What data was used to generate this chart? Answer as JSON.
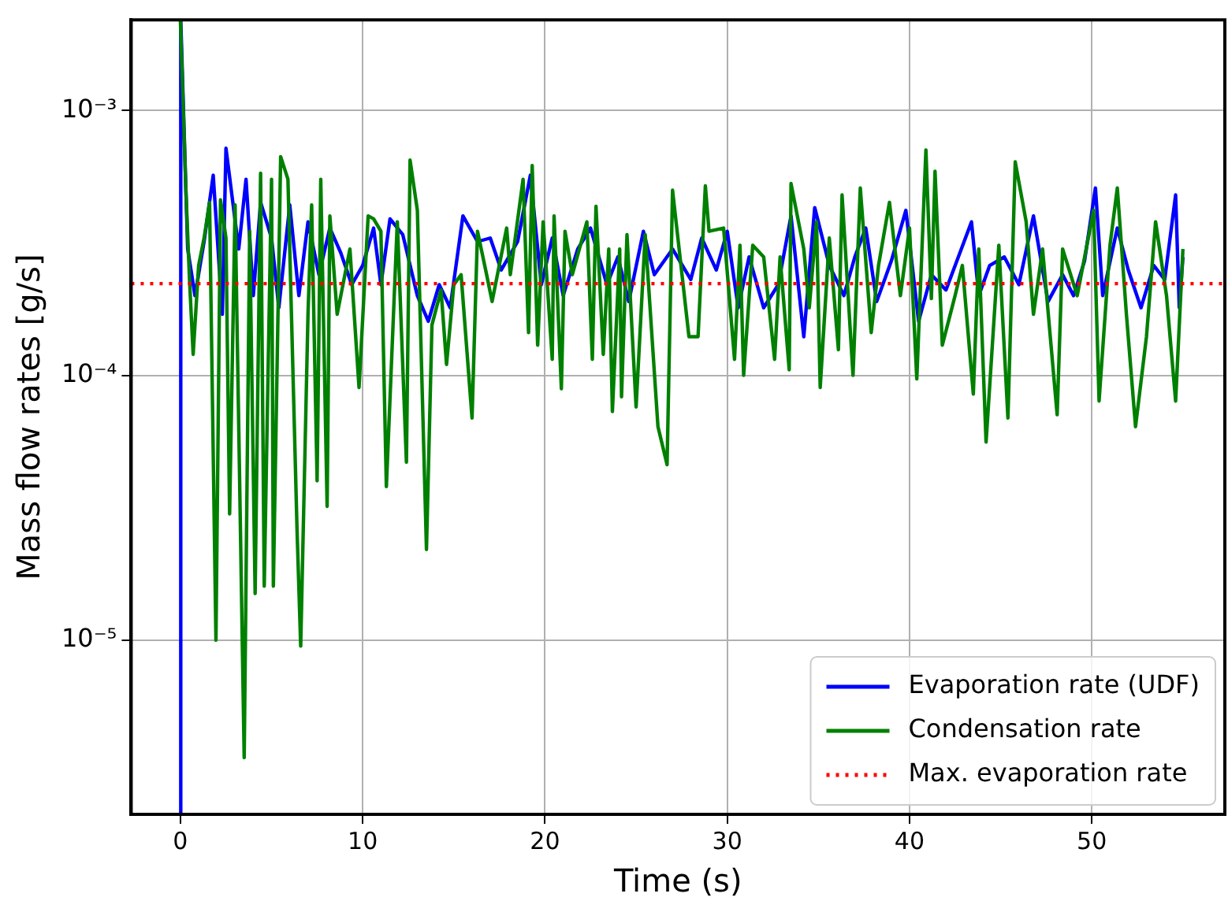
{
  "chart_data": {
    "type": "line",
    "xlabel": "Time (s)",
    "ylabel": "Mass flow rates [g/s]",
    "log": "y",
    "grid": true,
    "legend": "bottom right",
    "marker": "none",
    "line_style": "solid",
    "xlim": [
      -2.7,
      57.3
    ],
    "xticks": [
      0,
      10,
      20,
      30,
      40,
      50
    ],
    "ylim": [
      2.2e-06,
      0.0022
    ],
    "yticks": [
      {
        "value": 1e-05,
        "label": "10⁻⁵"
      },
      {
        "value": 0.0001,
        "label": "10⁻⁴"
      },
      {
        "value": 0.001,
        "label": "10⁻³"
      }
    ],
    "ref_lines": [
      {
        "axis": "y",
        "value": 0.000222,
        "label": "Max. evaporation rate",
        "color": "#ff0000",
        "line_style": "dotted"
      }
    ],
    "series": [
      {
        "name": "Evaporation rate (UDF)",
        "color": "#0000ff",
        "x": [
          0,
          0.02,
          0.4,
          0.8,
          1.3,
          1.8,
          2.3,
          2.5,
          3.2,
          3.6,
          4.0,
          4.4,
          5.0,
          5.4,
          6.0,
          6.5,
          7.0,
          7.6,
          8.2,
          8.8,
          9.4,
          10.0,
          10.6,
          11.0,
          11.5,
          12.2,
          13.0,
          13.6,
          14.2,
          14.8,
          15.5,
          16.3,
          17.0,
          17.6,
          18.5,
          19.2,
          19.8,
          20.4,
          21.0,
          21.8,
          22.5,
          23.4,
          24.0,
          24.6,
          25.4,
          26.0,
          27.0,
          28.0,
          28.6,
          29.4,
          30.0,
          30.6,
          31.2,
          32.0,
          32.8,
          33.5,
          34.2,
          34.8,
          35.6,
          36.4,
          37.0,
          37.6,
          38.2,
          39.0,
          39.8,
          40.5,
          41.2,
          42.0,
          43.4,
          43.8,
          44.4,
          45.2,
          46.0,
          46.8,
          47.6,
          48.4,
          49.0,
          49.6,
          50.2,
          50.6,
          51.4,
          52.0,
          52.7,
          53.4,
          54.0,
          54.6,
          54.8,
          55.0
        ],
        "values": [
          2.2e-06,
          0.0022,
          0.0003,
          0.0002,
          0.00032,
          0.00057,
          0.00017,
          0.00072,
          0.0003,
          0.00055,
          0.0002,
          0.00045,
          0.00033,
          0.00018,
          0.00044,
          0.0002,
          0.00038,
          0.00024,
          0.00036,
          0.00029,
          0.00022,
          0.00026,
          0.00036,
          0.00022,
          0.00039,
          0.00034,
          0.0002,
          0.00016,
          0.00022,
          0.00018,
          0.0004,
          0.00032,
          0.00033,
          0.00025,
          0.00032,
          0.00057,
          0.00022,
          0.00033,
          0.0002,
          0.0003,
          0.00036,
          0.00022,
          0.00028,
          0.00019,
          0.00035,
          0.00024,
          0.0003,
          0.00023,
          0.00033,
          0.00025,
          0.00035,
          0.00018,
          0.00028,
          0.00018,
          0.00022,
          0.0004,
          0.00014,
          0.00043,
          0.00026,
          0.0002,
          0.00028,
          0.00036,
          0.00019,
          0.00027,
          0.00042,
          0.00016,
          0.00024,
          0.00021,
          0.00038,
          0.0002,
          0.00026,
          0.00028,
          0.00022,
          0.0004,
          0.00019,
          0.00024,
          0.0002,
          0.00027,
          0.00051,
          0.0002,
          0.00036,
          0.00025,
          0.00018,
          0.00026,
          0.00023,
          0.00048,
          0.00018,
          0.00028
        ]
      },
      {
        "name": "Condensation rate",
        "color": "#008000",
        "x": [
          0,
          0.3,
          0.5,
          0.7,
          1.0,
          1.3,
          1.6,
          1.95,
          2.2,
          2.5,
          2.7,
          3.0,
          3.5,
          3.8,
          4.1,
          4.4,
          4.6,
          5.0,
          5.1,
          5.5,
          5.9,
          6.4,
          6.6,
          7.0,
          7.2,
          7.5,
          7.7,
          8.05,
          8.2,
          8.6,
          9.3,
          9.8,
          10.3,
          10.6,
          11.0,
          11.3,
          11.9,
          12.4,
          12.6,
          13.0,
          13.5,
          13.8,
          14.3,
          14.6,
          15.0,
          15.4,
          16.0,
          16.3,
          16.8,
          17.1,
          17.9,
          18.1,
          18.8,
          19.1,
          19.3,
          19.6,
          19.9,
          20.4,
          20.5,
          20.9,
          21.1,
          21.5,
          22.3,
          22.6,
          22.8,
          23.2,
          23.5,
          23.7,
          24.1,
          24.2,
          24.5,
          25.0,
          25.5,
          26.2,
          26.7,
          27.0,
          27.9,
          28.4,
          28.8,
          29.0,
          29.8,
          30.4,
          30.7,
          30.9,
          31.4,
          32.0,
          32.6,
          32.9,
          33.4,
          33.5,
          34.2,
          34.5,
          34.9,
          35.1,
          35.6,
          36.1,
          36.3,
          36.9,
          37.3,
          37.9,
          38.3,
          38.9,
          39.5,
          40.0,
          40.4,
          40.9,
          41.2,
          41.4,
          41.8,
          42.5,
          42.9,
          43.5,
          43.8,
          44.2,
          44.9,
          45.4,
          45.8,
          46.4,
          46.8,
          47.3,
          48.1,
          48.4,
          49.2,
          50.1,
          50.4,
          51.0,
          51.4,
          51.9,
          52.4,
          53.0,
          53.5,
          54.1,
          54.6,
          55.0
        ],
        "values": [
          0.0022,
          0.0005,
          0.00023,
          0.00012,
          0.00026,
          0.00033,
          0.00045,
          1e-05,
          0.00046,
          0.00033,
          3e-05,
          0.00044,
          3.6e-06,
          0.00035,
          1.5e-05,
          0.00058,
          1.6e-05,
          0.00055,
          1.6e-05,
          0.00067,
          0.00055,
          2.6e-05,
          9.5e-06,
          0.00017,
          0.00044,
          4e-05,
          0.00055,
          3.2e-05,
          0.0004,
          0.00017,
          0.0003,
          9e-05,
          0.0004,
          0.00039,
          0.00035,
          3.8e-05,
          0.00038,
          4.7e-05,
          0.00065,
          0.00042,
          2.2e-05,
          0.000155,
          0.00021,
          0.00011,
          0.00022,
          0.00024,
          6.9e-05,
          0.00035,
          0.00024,
          0.00019,
          0.00036,
          0.00024,
          0.00055,
          0.000145,
          0.00062,
          0.00013,
          0.00038,
          0.000115,
          0.0004,
          8.9e-05,
          0.00035,
          0.00024,
          0.00038,
          0.000115,
          0.000435,
          0.00012,
          0.0003,
          7.3e-05,
          0.0003,
          8.3e-05,
          0.00034,
          7.6e-05,
          0.00034,
          6.4e-05,
          4.6e-05,
          0.0005,
          0.00014,
          0.00014,
          0.00052,
          0.00035,
          0.00036,
          0.000115,
          0.00031,
          0.0001,
          0.00031,
          0.00028,
          0.000115,
          0.00028,
          0.000105,
          0.00053,
          0.0003,
          0.00018,
          0.00038,
          9e-05,
          0.00033,
          0.000125,
          0.00048,
          0.0001,
          0.00051,
          0.000145,
          0.00026,
          0.00045,
          0.0002,
          0.00036,
          9.7e-05,
          0.00071,
          0.000195,
          0.00059,
          0.00013,
          0.0002,
          0.00026,
          8.5e-05,
          0.0003,
          5.6e-05,
          0.00031,
          6.9e-05,
          0.00064,
          0.00038,
          0.00017,
          0.0003,
          7.1e-05,
          0.0003,
          0.0002,
          0.00042,
          8e-05,
          0.00031,
          0.00051,
          0.00017,
          6.4e-05,
          0.00014,
          0.00038,
          0.0002,
          8e-05,
          0.0003
        ]
      }
    ]
  }
}
